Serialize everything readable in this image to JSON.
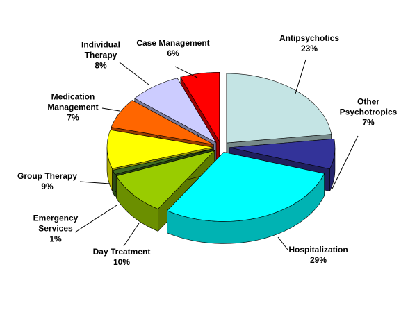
{
  "chart_data": {
    "type": "pie3d",
    "categories": [
      "Antipsychotics",
      "Other Psychotropics",
      "Hospitalization",
      "Day Treatment",
      "Emergency Services",
      "Group Therapy",
      "Medication Management",
      "Individual Therapy",
      "Case Management"
    ],
    "values": [
      23,
      7,
      29,
      10,
      1,
      9,
      7,
      8,
      6
    ],
    "value_labels": [
      "23%",
      "7%",
      "29%",
      "10%",
      "1%",
      "9%",
      "7%",
      "8%",
      "6%"
    ],
    "colors": [
      "#c4e4e4",
      "#333399",
      "#00ffff",
      "#99cc00",
      "#3d6b1e",
      "#ffff00",
      "#ff6600",
      "#ccccff",
      "#ff0000"
    ]
  }
}
